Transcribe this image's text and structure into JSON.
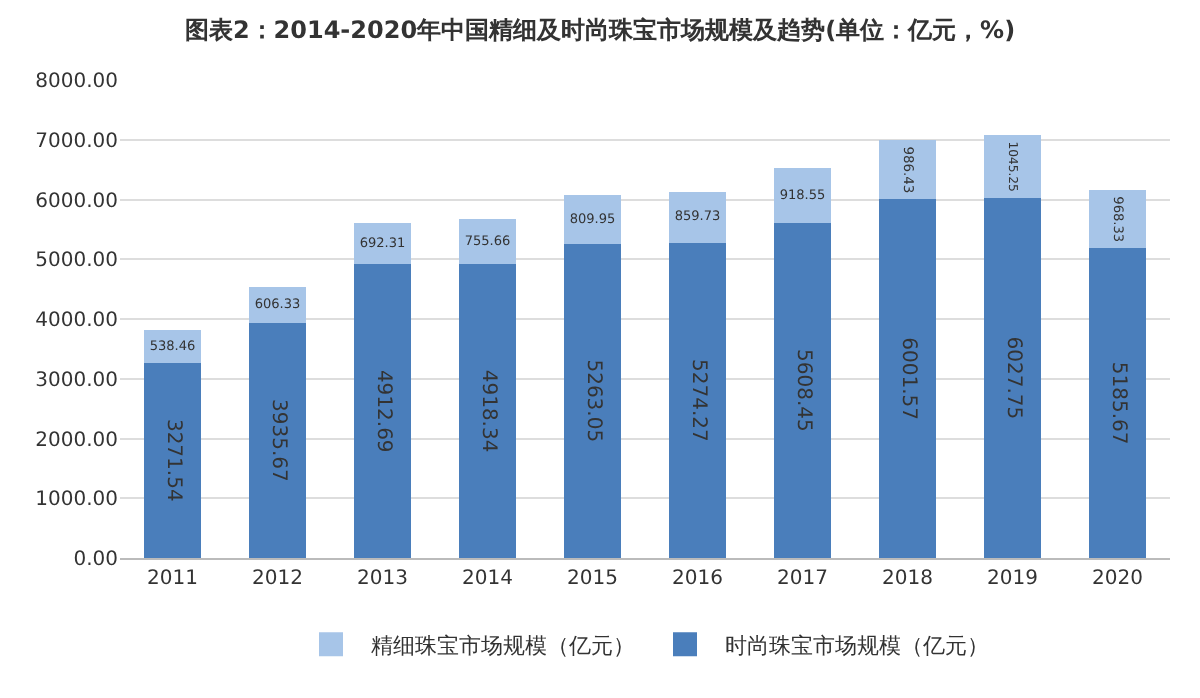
{
  "chart_data": {
    "type": "bar",
    "title": "图表2：2014-2020年中国精细及时尚珠宝市场规模及趋势(单位：亿元，%)",
    "categories": [
      "2011",
      "2012",
      "2013",
      "2014",
      "2015",
      "2016",
      "2017",
      "2018",
      "2019",
      "2020"
    ],
    "stacked": true,
    "data_labels": true,
    "grid": "y",
    "legend": "bottom",
    "ylim": [
      0,
      8000
    ],
    "yticks": [
      {
        "value": 0,
        "label": "0.00"
      },
      {
        "value": 1000,
        "label": "1000.00"
      },
      {
        "value": 2000,
        "label": "2000.00"
      },
      {
        "value": 3000,
        "label": "3000.00"
      },
      {
        "value": 4000,
        "label": "4000.00"
      },
      {
        "value": 5000,
        "label": "5000.00"
      },
      {
        "value": 6000,
        "label": "6000.00"
      },
      {
        "value": 7000,
        "label": "7000.00"
      },
      {
        "value": 8000,
        "label": "8000.00"
      }
    ],
    "series": [
      {
        "name": "时尚珠宝市场规模（亿元）",
        "color": "#4a7ebb",
        "values": [
          3271.54,
          3935.67,
          4912.69,
          4918.34,
          5263.05,
          5274.27,
          5608.45,
          6001.57,
          6027.75,
          5185.67
        ]
      },
      {
        "name": "精细珠宝市场规模（亿元）",
        "color": "#a7c5e8",
        "values": [
          538.46,
          606.33,
          692.31,
          755.66,
          809.95,
          859.73,
          918.55,
          986.43,
          1045.25,
          968.33
        ]
      }
    ]
  }
}
